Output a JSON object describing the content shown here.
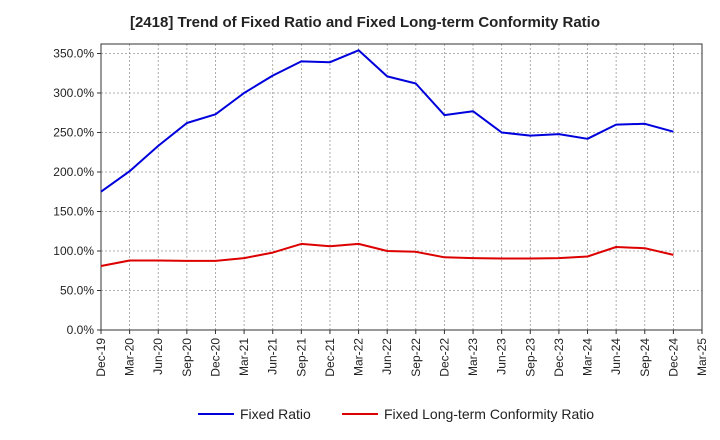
{
  "chart_data": {
    "type": "line",
    "title": "[2418]  Trend of Fixed Ratio and Fixed Long-term Conformity Ratio",
    "x_ticks": [
      "Dec-19",
      "Mar-20",
      "Jun-20",
      "Sep-20",
      "Dec-20",
      "Mar-21",
      "Jun-21",
      "Sep-21",
      "Dec-21",
      "Mar-22",
      "Jun-22",
      "Sep-22",
      "Dec-22",
      "Mar-23",
      "Jun-23",
      "Sep-23",
      "Dec-23",
      "Mar-24",
      "Jun-24",
      "Sep-24",
      "Dec-24",
      "Mar-25"
    ],
    "y_ticks": [
      "0.0%",
      "50.0%",
      "100.0%",
      "150.0%",
      "200.0%",
      "250.0%",
      "300.0%",
      "350.0%"
    ],
    "ylim": [
      0,
      362
    ],
    "grid": true,
    "legend_position": "bottom",
    "series": [
      {
        "name": "Fixed Ratio",
        "color": "#0000dd",
        "x": [
          "Dec-19",
          "Mar-20",
          "Jun-20",
          "Sep-20",
          "Dec-20",
          "Mar-21",
          "Jun-21",
          "Sep-21",
          "Dec-21",
          "Mar-22",
          "Jun-22",
          "Sep-22",
          "Dec-22",
          "Mar-23",
          "Jun-23",
          "Sep-23",
          "Dec-23",
          "Mar-24",
          "Jun-24",
          "Sep-24",
          "Dec-24"
        ],
        "values": [
          175,
          201,
          233,
          262,
          273,
          300,
          322,
          340,
          339,
          354,
          321,
          312,
          272,
          277,
          250,
          246,
          248,
          242,
          260,
          261,
          251
        ]
      },
      {
        "name": "Fixed Long-term Conformity Ratio",
        "color": "#dd0000",
        "x": [
          "Dec-19",
          "Mar-20",
          "Jun-20",
          "Sep-20",
          "Dec-20",
          "Mar-21",
          "Jun-21",
          "Sep-21",
          "Dec-21",
          "Mar-22",
          "Jun-22",
          "Sep-22",
          "Dec-22",
          "Mar-23",
          "Jun-23",
          "Sep-23",
          "Dec-23",
          "Mar-24",
          "Jun-24",
          "Sep-24",
          "Dec-24"
        ],
        "values": [
          81,
          88,
          88,
          87.5,
          87.5,
          91,
          98,
          109,
          106,
          109,
          100,
          99,
          92,
          91,
          90.5,
          90.5,
          91,
          93,
          105,
          103.5,
          95
        ]
      }
    ]
  }
}
